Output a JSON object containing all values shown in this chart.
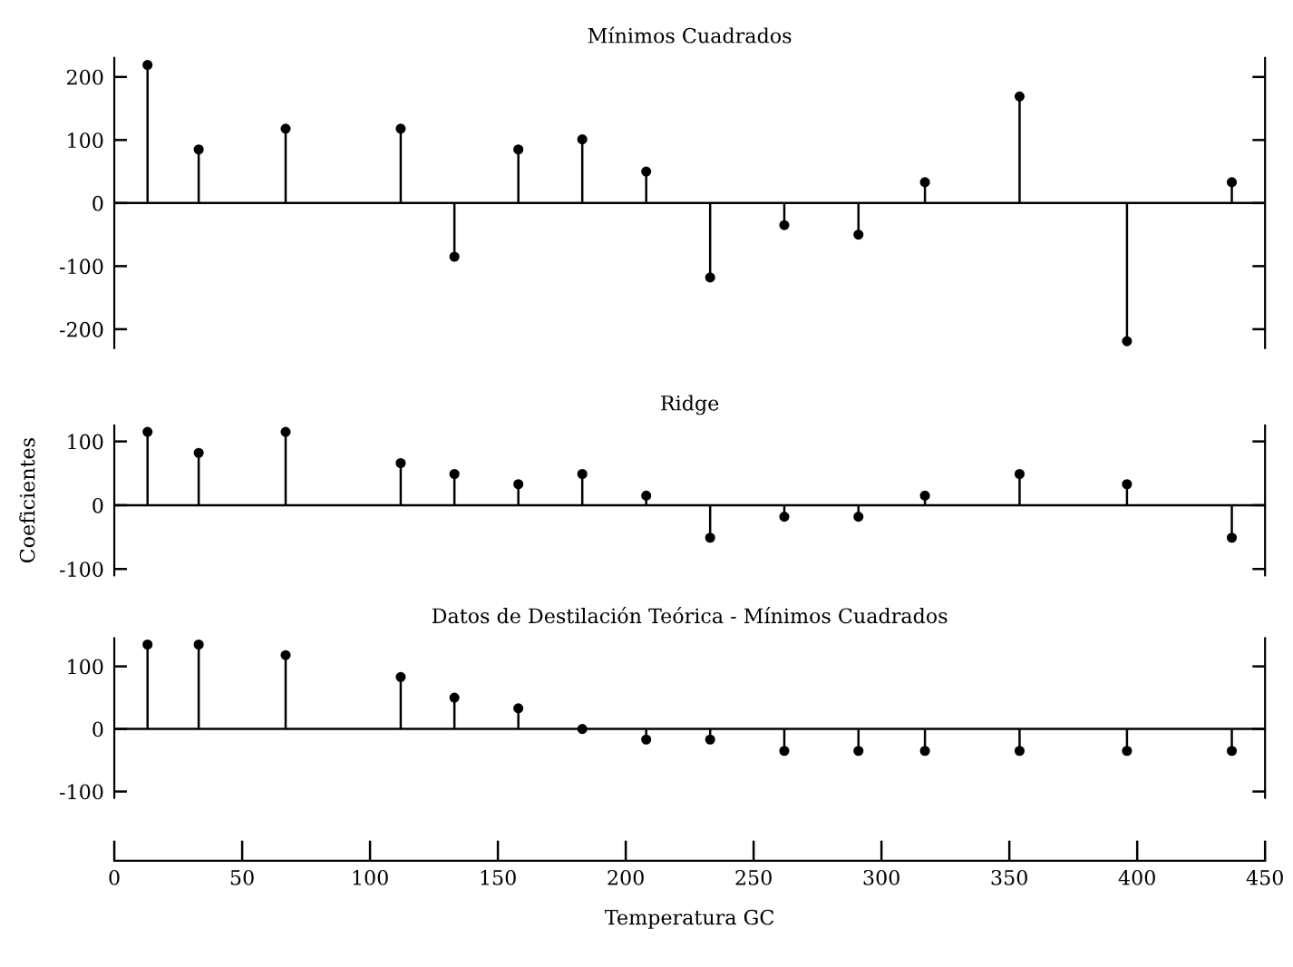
{
  "chart_data": [
    {
      "type": "lollipop",
      "title": "Mínimos Cuadrados",
      "x": [
        13,
        33,
        67,
        112,
        133,
        158,
        183,
        208,
        233,
        262,
        291,
        317,
        354,
        396,
        437
      ],
      "series": [
        {
          "color": "#000000",
          "values": [
            219,
            85,
            118,
            118,
            -85,
            85,
            101,
            50,
            -118,
            -35,
            -50,
            33,
            169,
            -219,
            33
          ]
        }
      ],
      "xlim": [
        0,
        450
      ],
      "ylim": [
        -230,
        230
      ],
      "yticks": [
        -200,
        -100,
        0,
        100,
        200
      ],
      "tick_labels": "y",
      "marker": "circle",
      "grid": false,
      "legend": false,
      "ref_lines": [
        {
          "axis": "y",
          "value": 0
        }
      ]
    },
    {
      "type": "lollipop",
      "title": "Ridge",
      "ylabel": "Coeficientes",
      "x": [
        13,
        33,
        67,
        112,
        133,
        158,
        183,
        208,
        233,
        262,
        291,
        317,
        354,
        396,
        437
      ],
      "series": [
        {
          "color": "#000000",
          "values": [
            115,
            82,
            115,
            66,
            49,
            33,
            49,
            15,
            -51,
            -18,
            -18,
            15,
            49,
            33,
            -51
          ]
        }
      ],
      "xlim": [
        0,
        450
      ],
      "ylim": [
        -110,
        125
      ],
      "yticks": [
        -100,
        0,
        100
      ],
      "tick_labels": "y",
      "marker": "circle",
      "grid": false,
      "legend": false,
      "ref_lines": [
        {
          "axis": "y",
          "value": 0
        }
      ]
    },
    {
      "type": "lollipop",
      "title": "Datos de Destilación Teórica - Mínimos Cuadrados",
      "xlabel": "Temperatura GC",
      "x": [
        13,
        33,
        67,
        112,
        133,
        158,
        183,
        208,
        233,
        262,
        291,
        317,
        354,
        396,
        437
      ],
      "series": [
        {
          "color": "#000000",
          "values": [
            135,
            135,
            118,
            83,
            50,
            33,
            0,
            -17,
            -17,
            -35,
            -35,
            -35,
            -35,
            -35,
            -35
          ]
        }
      ],
      "xlim": [
        0,
        450
      ],
      "ylim": [
        -110,
        145
      ],
      "xticks": [
        0,
        50,
        100,
        150,
        200,
        250,
        300,
        350,
        400,
        450
      ],
      "yticks": [
        -100,
        0,
        100
      ],
      "marker": "circle",
      "grid": false,
      "legend": false,
      "ref_lines": [
        {
          "axis": "y",
          "value": 0
        }
      ]
    }
  ]
}
